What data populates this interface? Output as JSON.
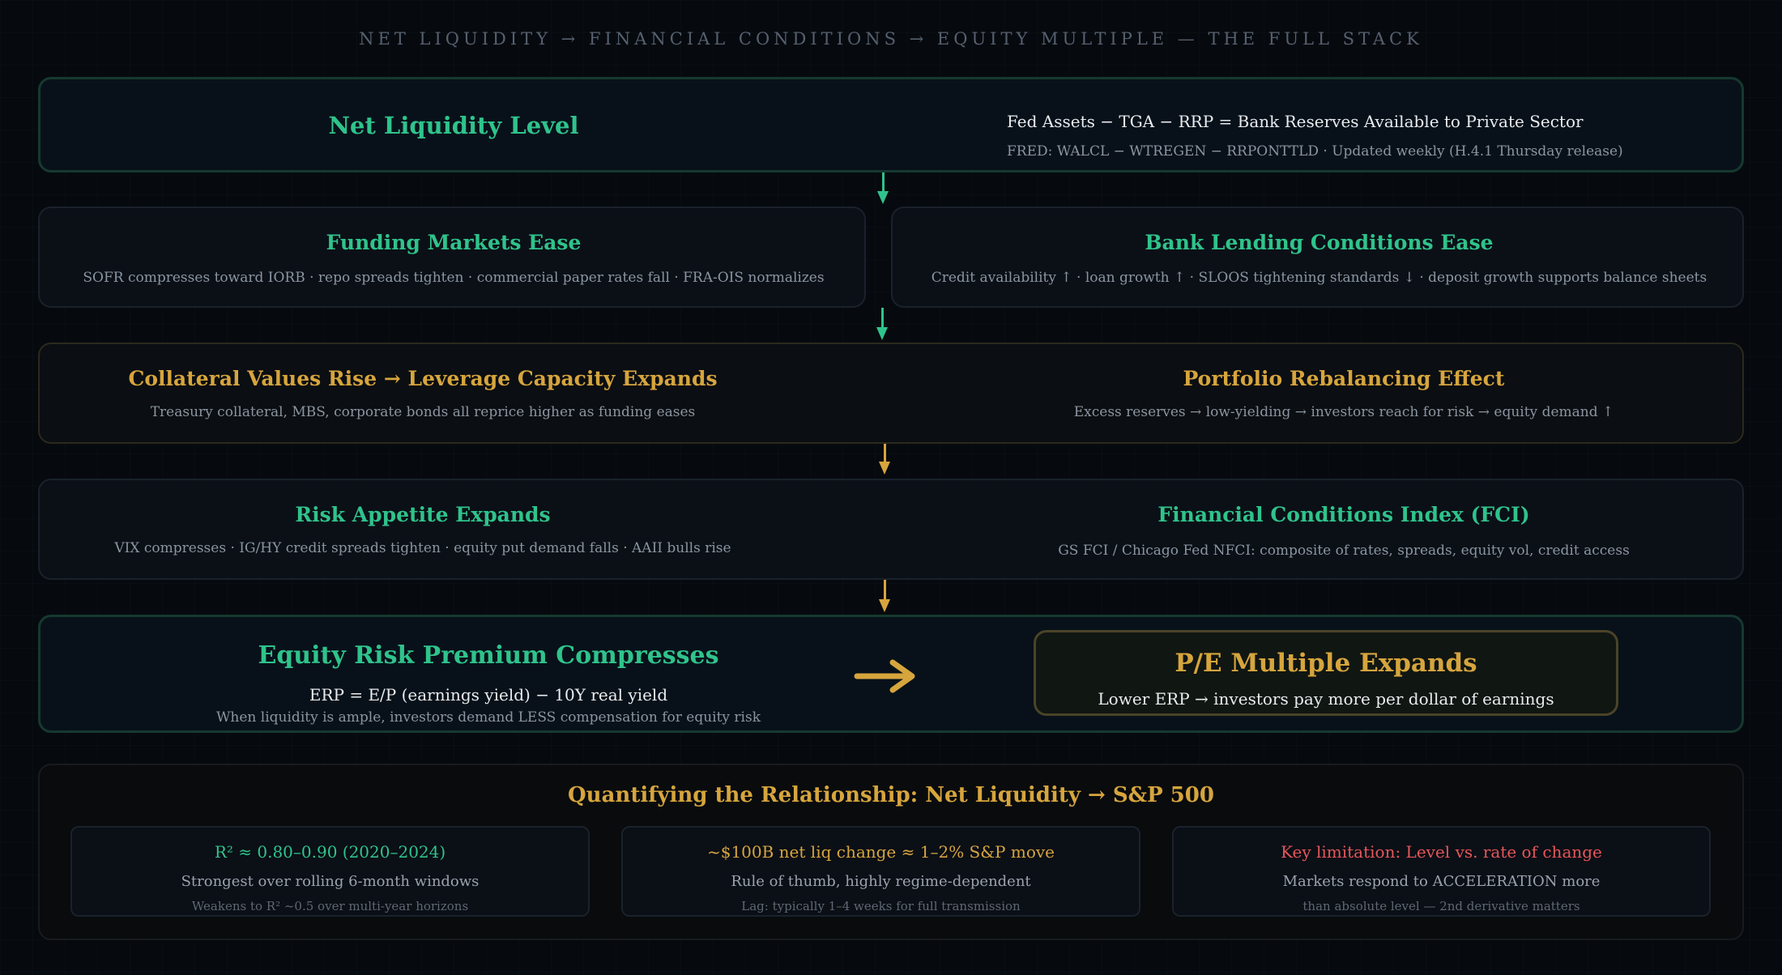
{
  "title": "NET LIQUIDITY → FINANCIAL CONDITIONS → EQUITY MULTIPLE — THE FULL STACK",
  "net_liquidity": {
    "heading": "Net Liquidity Level",
    "formula": "Fed Assets − TGA − RRP = Bank Reserves Available to Private Sector",
    "source": "FRED: WALCL − WTREGEN − RRPONTTLD · Updated weekly (H.4.1 Thursday release)"
  },
  "funding": {
    "heading": "Funding Markets Ease",
    "detail": "SOFR compresses toward IORB · repo spreads tighten · commercial paper rates fall · FRA-OIS normalizes"
  },
  "bank_lending": {
    "heading": "Bank Lending Conditions Ease",
    "detail": "Credit availability ↑ · loan growth ↑ · SLOOS tightening standards ↓ · deposit growth supports balance sheets"
  },
  "collateral": {
    "heading": "Collateral Values Rise → Leverage Capacity Expands",
    "detail": "Treasury collateral, MBS, corporate bonds all reprice higher as funding eases"
  },
  "rebalancing": {
    "heading": "Portfolio Rebalancing Effect",
    "detail": "Excess reserves → low-yielding → investors reach for risk → equity demand ↑"
  },
  "risk_appetite": {
    "heading": "Risk Appetite Expands",
    "detail": "VIX compresses · IG/HY credit spreads tighten · equity put demand falls · AAII bulls rise"
  },
  "fci": {
    "heading": "Financial Conditions Index (FCI)",
    "detail": "GS FCI / Chicago Fed NFCI: composite of rates, spreads, equity vol, credit access"
  },
  "erp": {
    "heading": "Equity Risk Premium Compresses",
    "formula": "ERP = E/P (earnings yield) − 10Y real yield",
    "detail": "When liquidity is ample, investors demand LESS compensation for equity risk"
  },
  "pe": {
    "heading": "P/E Multiple Expands",
    "detail": "Lower ERP → investors pay more per dollar of earnings"
  },
  "quant": {
    "heading": "Quantifying the Relationship: Net Liquidity → S&P 500",
    "cards": [
      {
        "headline": "R² ≈ 0.80–0.90 (2020–2024)",
        "line2": "Strongest over rolling 6-month windows",
        "line3": "Weakens to R² ~0.5 over multi-year horizons"
      },
      {
        "headline": "~$100B net liq change ≈ 1–2% S&P move",
        "line2": "Rule of thumb, highly regime-dependent",
        "line3": "Lag: typically 1–4 weeks for full transmission"
      },
      {
        "headline": "Key limitation: Level vs. rate of change",
        "line2": "Markets respond to ACCELERATION more",
        "line3": "than absolute level — 2nd derivative matters"
      }
    ]
  },
  "colors": {
    "green": "#2fc38b",
    "gold": "#d6a53d",
    "red": "#e5575a"
  }
}
